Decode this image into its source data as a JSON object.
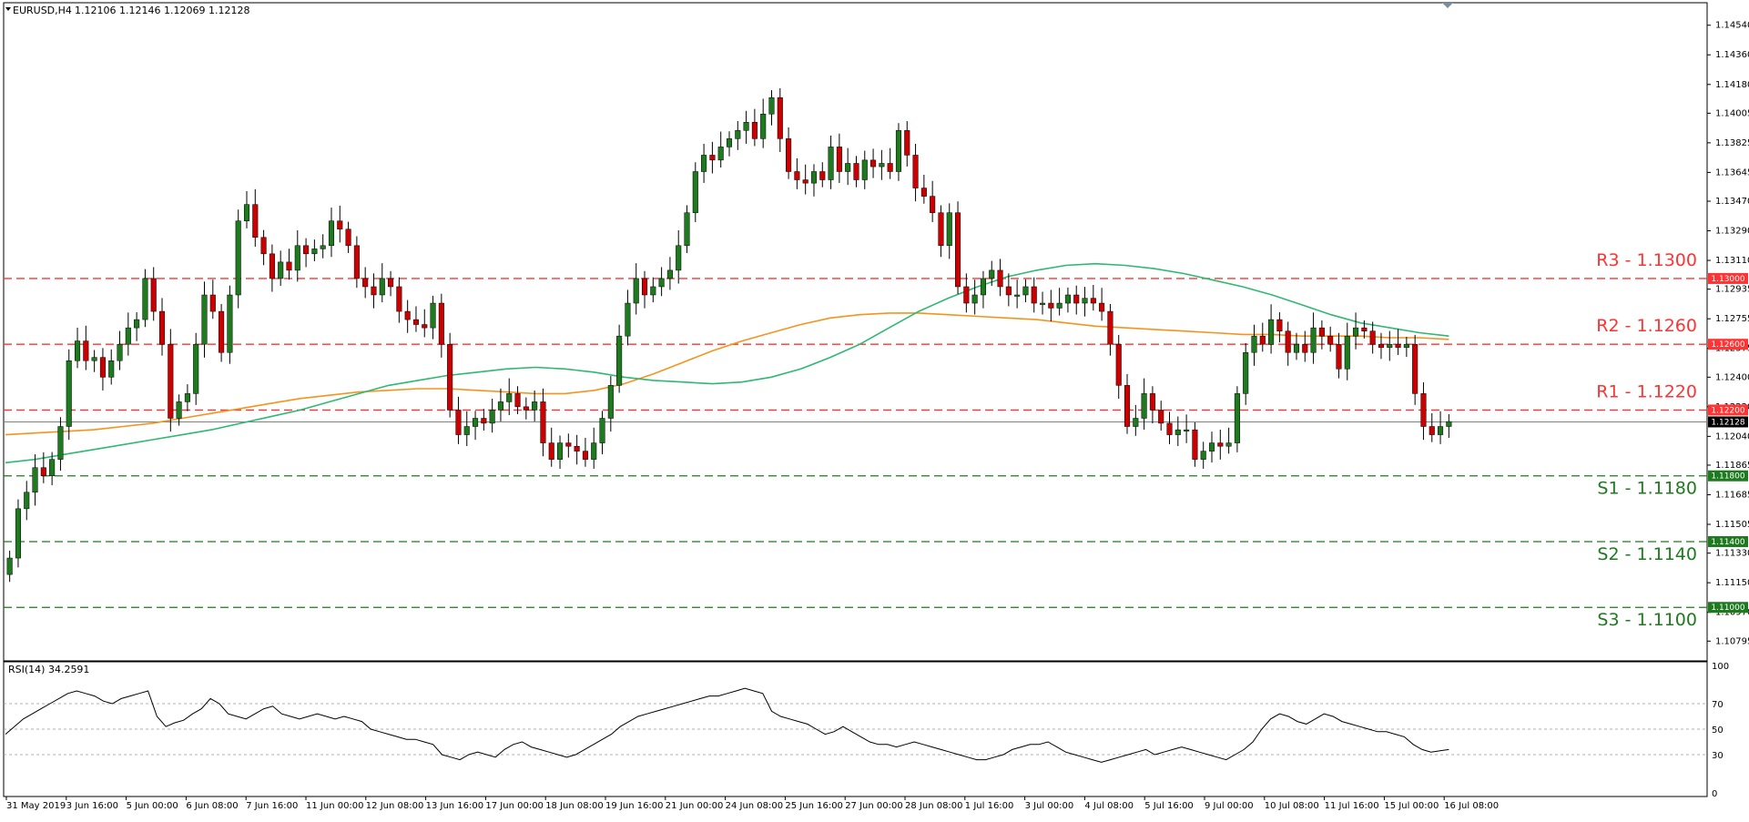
{
  "header": {
    "symbol": "EURUSD,H4",
    "ohlc": "1.12106 1.12146 1.12069 1.12128",
    "rsi_label": "RSI(14) 34.2591"
  },
  "colors": {
    "background": "#ffffff",
    "bull_candle": "#1e7a1e",
    "bear_candle": "#cc0000",
    "wick": "#000000",
    "ma_fast": "#2eb872",
    "ma_slow": "#f5931e",
    "resistance": "#ff3333",
    "support": "#1e7a1e",
    "price_tag": "#000000",
    "rsi_line": "#000000",
    "rsi_level": "#999999"
  },
  "chart_data": [
    {
      "type": "candlestick",
      "title": "EURUSD,H4",
      "ylim": [
        1.10708,
        1.14627
      ],
      "y_ticks": [
        "1.14540",
        "1.14360",
        "1.14180",
        "1.14005",
        "1.13825",
        "1.13645",
        "1.13470",
        "1.13290",
        "1.13110",
        "1.12935",
        "1.12755",
        "1.12575",
        "1.12400",
        "1.12220",
        "1.12040",
        "1.11865",
        "1.11685",
        "1.11505",
        "1.11330",
        "1.11150",
        "1.10970",
        "1.10795"
      ],
      "x_labels": [
        "31 May 2019",
        "3 Jun 16:00",
        "5 Jun 00:00",
        "6 Jun 08:00",
        "7 Jun 16:00",
        "11 Jun 00:00",
        "12 Jun 08:00",
        "13 Jun 16:00",
        "17 Jun 00:00",
        "18 Jun 08:00",
        "19 Jun 16:00",
        "21 Jun 00:00",
        "24 Jun 08:00",
        "25 Jun 16:00",
        "27 Jun 00:00",
        "28 Jun 08:00",
        "1 Jul 16:00",
        "3 Jul 00:00",
        "4 Jul 08:00",
        "5 Jul 16:00",
        "9 Jul 00:00",
        "10 Jul 08:00",
        "11 Jul 16:00",
        "15 Jul 00:00",
        "16 Jul 08:00"
      ],
      "levels": [
        {
          "name": "R3 - 1.1300",
          "value": 1.13,
          "tag": "1.13000",
          "kind": "resistance"
        },
        {
          "name": "R2 - 1.1260",
          "value": 1.126,
          "tag": "1.12600",
          "kind": "resistance"
        },
        {
          "name": "R1 - 1.1220",
          "value": 1.122,
          "tag": "1.12200",
          "kind": "resistance"
        },
        {
          "name": "S1 - 1.1180",
          "value": 1.118,
          "tag": "1.11800",
          "kind": "support"
        },
        {
          "name": "S2 - 1.1140",
          "value": 1.114,
          "tag": "1.11400",
          "kind": "support"
        },
        {
          "name": "S3 - 1.1100",
          "value": 1.11,
          "tag": "1.11000",
          "kind": "support"
        }
      ],
      "current_price": {
        "value": 1.12128,
        "tag": "1.12128"
      },
      "series": [
        {
          "kind": "close",
          "values": [
            1.113,
            1.116,
            1.117,
            1.1185,
            1.118,
            1.119,
            1.121,
            1.125,
            1.1262,
            1.125,
            1.1252,
            1.124,
            1.125,
            1.126,
            1.127,
            1.1275,
            1.13,
            1.128,
            1.126,
            1.1215,
            1.1225,
            1.123,
            1.126,
            1.129,
            1.128,
            1.1255,
            1.129,
            1.1335,
            1.1345,
            1.1325,
            1.1315,
            1.13,
            1.131,
            1.1305,
            1.132,
            1.1315,
            1.1318,
            1.132,
            1.1335,
            1.133,
            1.132,
            1.13,
            1.1295,
            1.129,
            1.13,
            1.1295,
            1.128,
            1.1275,
            1.1272,
            1.127,
            1.1285,
            1.126,
            1.122,
            1.1205,
            1.121,
            1.1215,
            1.1212,
            1.122,
            1.1225,
            1.123,
            1.1222,
            1.122,
            1.1225,
            1.12,
            1.119,
            1.12,
            1.1198,
            1.1195,
            1.119,
            1.12,
            1.1215,
            1.1235,
            1.1265,
            1.1285,
            1.13,
            1.129,
            1.1295,
            1.13,
            1.1305,
            1.132,
            1.134,
            1.1365,
            1.1375,
            1.1372,
            1.138,
            1.1385,
            1.139,
            1.1395,
            1.1385,
            1.14,
            1.141,
            1.1385,
            1.1365,
            1.136,
            1.1358,
            1.1365,
            1.136,
            1.138,
            1.1365,
            1.137,
            1.136,
            1.1372,
            1.1368,
            1.137,
            1.1365,
            1.139,
            1.1375,
            1.1355,
            1.135,
            1.134,
            1.132,
            1.134,
            1.1295,
            1.1285,
            1.129,
            1.13,
            1.1305,
            1.1295,
            1.129,
            1.129,
            1.1295,
            1.1285,
            1.1285,
            1.1282,
            1.1285,
            1.129,
            1.1285,
            1.1288,
            1.1285,
            1.128,
            1.126,
            1.1235,
            1.121,
            1.1215,
            1.123,
            1.122,
            1.1212,
            1.1205,
            1.1208,
            1.1208,
            1.119,
            1.1195,
            1.12,
            1.1198,
            1.12,
            1.123,
            1.1255,
            1.1265,
            1.126,
            1.1275,
            1.1268,
            1.1255,
            1.126,
            1.1255,
            1.127,
            1.1265,
            1.126,
            1.1245,
            1.1265,
            1.127,
            1.1268,
            1.126,
            1.1258,
            1.126,
            1.1258,
            1.126,
            1.123,
            1.121,
            1.1205,
            1.121,
            1.1213
          ],
          "name": ""
        },
        {
          "kind": "open",
          "values": [
            1.112,
            1.113,
            1.116,
            1.117,
            1.1185,
            1.118,
            1.119,
            1.121,
            1.125,
            1.1262,
            1.125,
            1.1252,
            1.124,
            1.125,
            1.126,
            1.127,
            1.1275,
            1.13,
            1.128,
            1.126,
            1.1215,
            1.1225,
            1.123,
            1.126,
            1.129,
            1.128,
            1.1255,
            1.129,
            1.1335,
            1.1345,
            1.1325,
            1.1315,
            1.13,
            1.131,
            1.1305,
            1.132,
            1.1315,
            1.1318,
            1.132,
            1.1335,
            1.133,
            1.132,
            1.13,
            1.1295,
            1.129,
            1.13,
            1.1295,
            1.128,
            1.1275,
            1.1272,
            1.127,
            1.1285,
            1.126,
            1.122,
            1.1205,
            1.121,
            1.1215,
            1.1212,
            1.122,
            1.1225,
            1.123,
            1.1222,
            1.122,
            1.1225,
            1.12,
            1.119,
            1.12,
            1.1198,
            1.1195,
            1.119,
            1.12,
            1.1215,
            1.1235,
            1.1265,
            1.1285,
            1.13,
            1.129,
            1.1295,
            1.13,
            1.1305,
            1.132,
            1.134,
            1.1365,
            1.1375,
            1.1372,
            1.138,
            1.1385,
            1.139,
            1.1395,
            1.1385,
            1.14,
            1.141,
            1.1385,
            1.1365,
            1.136,
            1.1358,
            1.1365,
            1.136,
            1.138,
            1.1365,
            1.137,
            1.136,
            1.1372,
            1.1368,
            1.137,
            1.1365,
            1.139,
            1.1375,
            1.1355,
            1.135,
            1.134,
            1.132,
            1.134,
            1.1295,
            1.1285,
            1.129,
            1.13,
            1.1305,
            1.1295,
            1.129,
            1.129,
            1.1295,
            1.1285,
            1.1285,
            1.1282,
            1.1285,
            1.129,
            1.1285,
            1.1288,
            1.1285,
            1.128,
            1.126,
            1.1235,
            1.121,
            1.1215,
            1.123,
            1.122,
            1.1212,
            1.1205,
            1.1208,
            1.1208,
            1.119,
            1.1195,
            1.12,
            1.1198,
            1.12,
            1.123,
            1.1255,
            1.1265,
            1.126,
            1.1275,
            1.1268,
            1.1255,
            1.126,
            1.1255,
            1.127,
            1.1265,
            1.126,
            1.1245,
            1.1265,
            1.127,
            1.1268,
            1.126,
            1.1258,
            1.126,
            1.1258,
            1.126,
            1.123,
            1.121,
            1.1205,
            1.121
          ],
          "name": ""
        },
        {
          "kind": "ma_fast",
          "name": "",
          "values": [
            1.1188,
            1.119,
            1.1193,
            1.1196,
            1.1199,
            1.1202,
            1.1205,
            1.1208,
            1.1212,
            1.1216,
            1.122,
            1.1225,
            1.123,
            1.1235,
            1.1238,
            1.1241,
            1.1243,
            1.1245,
            1.1246,
            1.1245,
            1.1243,
            1.124,
            1.1238,
            1.1237,
            1.1236,
            1.1237,
            1.124,
            1.1245,
            1.1252,
            1.126,
            1.127,
            1.128,
            1.1288,
            1.1295,
            1.1301,
            1.1305,
            1.1308,
            1.1309,
            1.1308,
            1.1306,
            1.1303,
            1.1299,
            1.1295,
            1.129,
            1.1284,
            1.1278,
            1.1273,
            1.127,
            1.1267,
            1.1265
          ]
        },
        {
          "kind": "ma_slow",
          "name": "",
          "values": [
            1.1205,
            1.1206,
            1.1207,
            1.1208,
            1.121,
            1.1212,
            1.1215,
            1.1218,
            1.1221,
            1.1224,
            1.1227,
            1.1229,
            1.1231,
            1.1232,
            1.1233,
            1.1233,
            1.1232,
            1.1231,
            1.123,
            1.123,
            1.1232,
            1.1236,
            1.1242,
            1.1249,
            1.1256,
            1.1262,
            1.1267,
            1.1272,
            1.1276,
            1.1278,
            1.1279,
            1.1279,
            1.1278,
            1.1277,
            1.1276,
            1.1275,
            1.1273,
            1.1271,
            1.127,
            1.1269,
            1.1268,
            1.1267,
            1.1266,
            1.1266,
            1.1265,
            1.1265,
            1.1265,
            1.1264,
            1.1264,
            1.1263
          ]
        }
      ]
    },
    {
      "type": "line",
      "title": "RSI(14) 34.2591",
      "ylim": [
        0,
        100
      ],
      "y_ticks": [
        "100",
        "70",
        "50",
        "30",
        "0"
      ],
      "levels": [
        70,
        50,
        30
      ],
      "series": [
        {
          "name": "",
          "values": [
            46,
            52,
            58,
            62,
            66,
            70,
            74,
            78,
            80,
            78,
            76,
            72,
            70,
            74,
            76,
            78,
            80,
            60,
            52,
            55,
            57,
            62,
            66,
            74,
            70,
            62,
            60,
            58,
            62,
            66,
            68,
            62,
            60,
            58,
            60,
            62,
            60,
            58,
            60,
            58,
            56,
            50,
            48,
            46,
            44,
            42,
            42,
            40,
            38,
            30,
            28,
            26,
            30,
            32,
            30,
            28,
            34,
            38,
            40,
            36,
            34,
            32,
            30,
            28,
            30,
            34,
            38,
            42,
            46,
            52,
            56,
            60,
            62,
            64,
            66,
            68,
            70,
            72,
            74,
            76,
            76,
            78,
            80,
            82,
            80,
            78,
            64,
            60,
            58,
            56,
            54,
            50,
            46,
            48,
            52,
            48,
            44,
            40,
            38,
            38,
            36,
            38,
            40,
            38,
            36,
            34,
            32,
            30,
            28,
            26,
            26,
            28,
            30,
            34,
            36,
            38,
            38,
            40,
            36,
            32,
            30,
            28,
            26,
            24,
            26,
            28,
            30,
            32,
            34,
            30,
            32,
            34,
            36,
            34,
            32,
            30,
            28,
            26,
            30,
            34,
            40,
            50,
            58,
            62,
            60,
            56,
            54,
            58,
            62,
            60,
            56,
            54,
            52,
            50,
            48,
            48,
            46,
            44,
            38,
            34,
            32,
            33,
            34
          ]
        }
      ]
    }
  ]
}
